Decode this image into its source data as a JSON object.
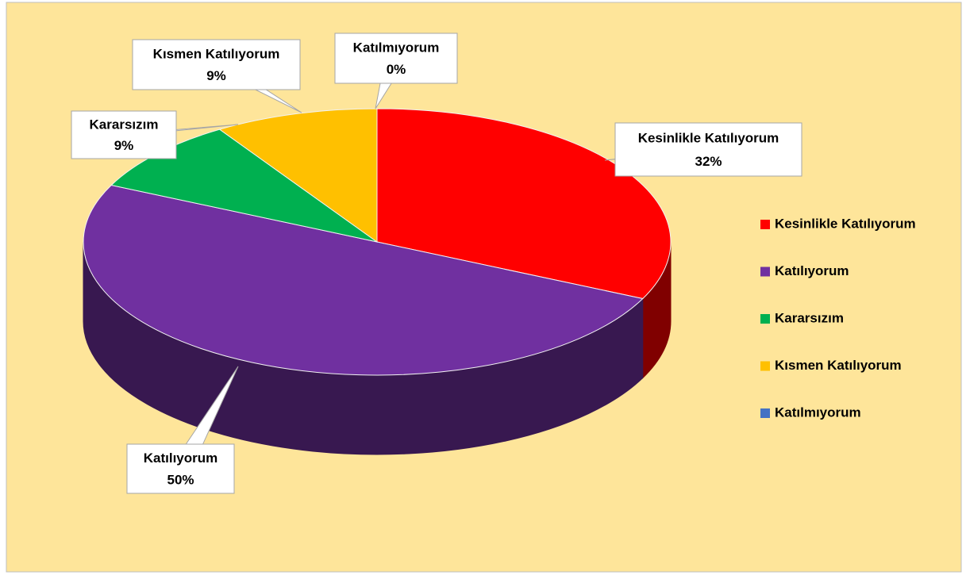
{
  "chart_data": {
    "type": "pie",
    "categories": [
      "Kesinlikle Katılıyorum",
      "Katılıyorum",
      "Kararsızım",
      "Kısmen Katılıyorum",
      "Katılmıyorum"
    ],
    "values": [
      32,
      50,
      9,
      9,
      0
    ],
    "value_labels": [
      "32%",
      "50%",
      "9%",
      "9%",
      "0%"
    ],
    "colors": [
      "#ff0000",
      "#7030a0",
      "#00b050",
      "#ffc000",
      "#4472c4"
    ],
    "legend": "right"
  }
}
